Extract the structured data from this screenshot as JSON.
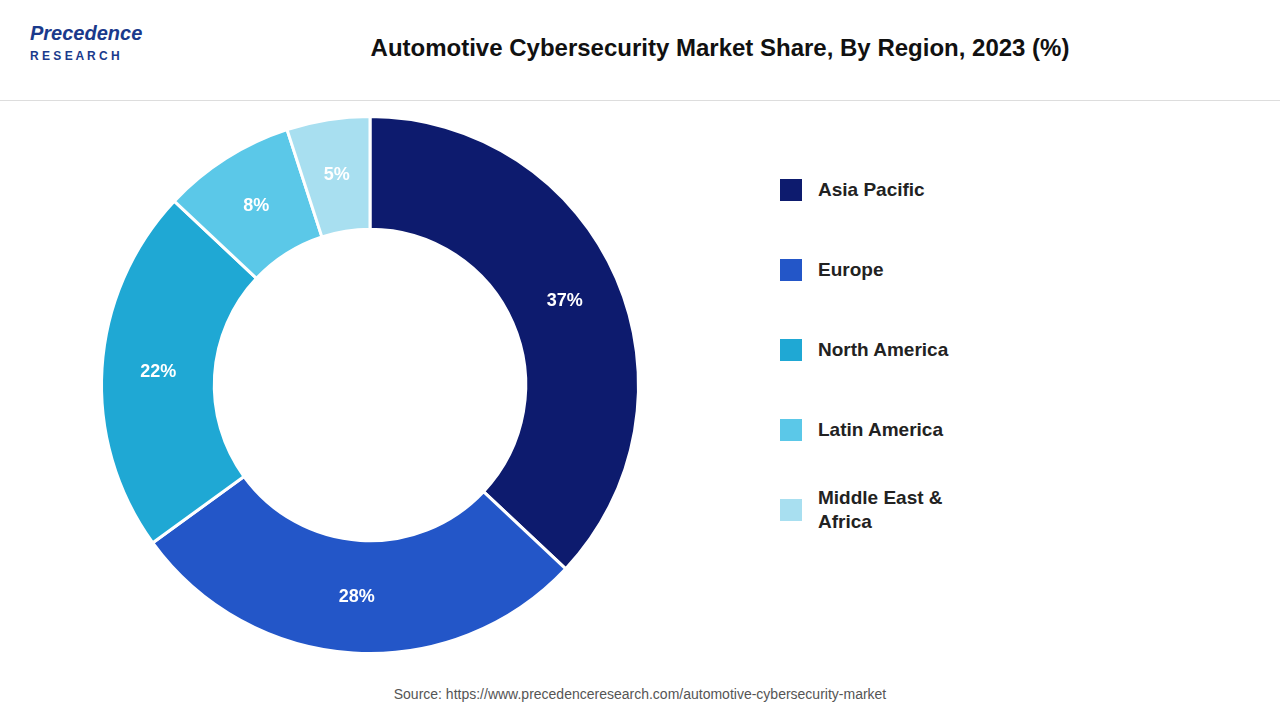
{
  "chart_data": {
    "type": "doughnut",
    "title": "Automotive Cybersecurity Market Share, By Region, 2023 (%)",
    "categories": [
      "Asia Pacific",
      "Europe",
      "North America",
      "Latin America",
      "Middle East &\nAfrica"
    ],
    "values": [
      37,
      28,
      22,
      8,
      5
    ],
    "value_labels": [
      "37%",
      "28%",
      "22%",
      "8%",
      "5%"
    ],
    "colors": [
      "#0d1b6e",
      "#2356c8",
      "#1fa8d4",
      "#5bc8e8",
      "#a8dff0"
    ],
    "data_labels": true,
    "legend": "right",
    "annotations": [
      "Precedence",
      "R E S E A R C H",
      "Source: https://www.precedenceresearch.com/automotive-cybersecurity-market"
    ]
  }
}
